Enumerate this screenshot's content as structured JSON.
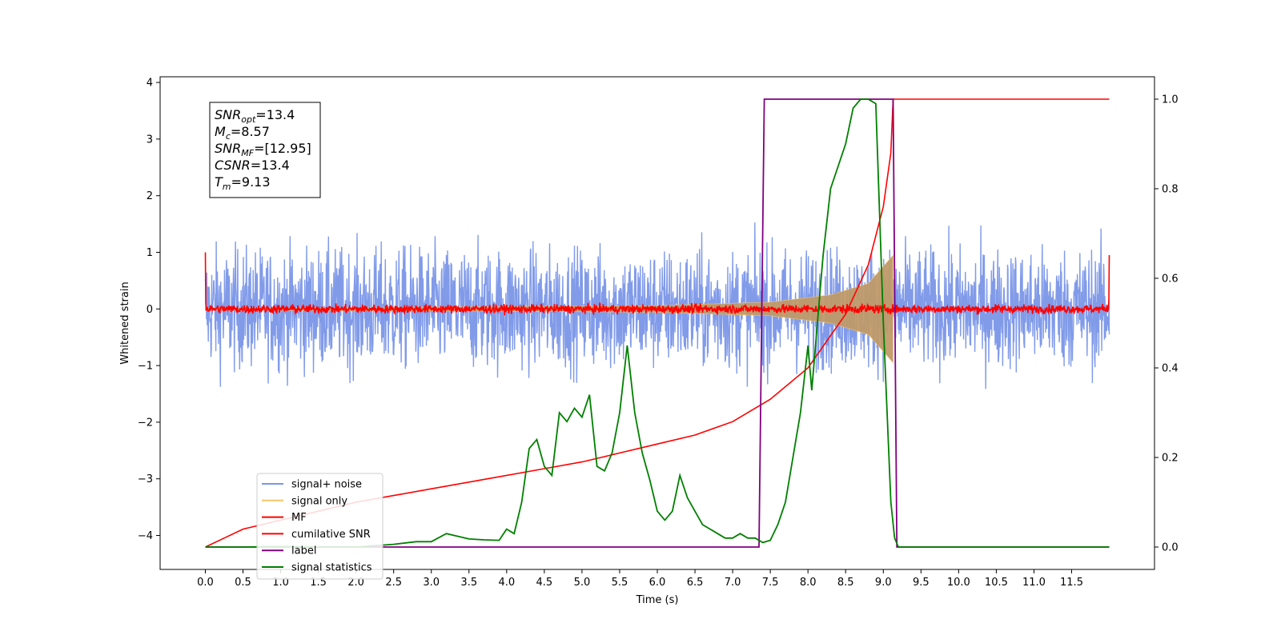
{
  "chart_data": {
    "type": "line",
    "xlabel": "Time (s)",
    "ylabel": "Whitened strain",
    "xlim": [
      -0.6,
      12.6
    ],
    "ylim": [
      -4.6,
      4.1
    ],
    "ylim_right": [
      -0.05,
      1.05
    ],
    "x_ticks": [
      "0.0",
      "0.5",
      "1.0",
      "1.5",
      "2.0",
      "2.5",
      "3.0",
      "3.5",
      "4.0",
      "4.5",
      "5.0",
      "5.5",
      "6.0",
      "6.5",
      "7.0",
      "7.5",
      "8.0",
      "8.5",
      "9.0",
      "9.5",
      "10.0",
      "10.5",
      "11.0",
      "11.5"
    ],
    "y_ticks_left": [
      "4",
      "3",
      "2",
      "1",
      "0",
      "−1",
      "−2",
      "−3",
      "−4"
    ],
    "y_ticks_right": [
      "1.0",
      "0.8",
      "0.6",
      "0.4",
      "0.2",
      "0.0"
    ],
    "grid": false,
    "legend_position": "lower-left",
    "info_box": [
      {
        "base": "SNR",
        "sub": "opt",
        "value": "=13.4"
      },
      {
        "base": "M",
        "sub": "c",
        "value": "=8.57"
      },
      {
        "base": "SNR",
        "sub": "MF",
        "value": "=[12.95]"
      },
      {
        "base": "CSNR",
        "sub": "",
        "value": "=13.4"
      },
      {
        "base": "T",
        "sub": "m",
        "value": "=9.13"
      }
    ],
    "series": [
      {
        "name": "signal+ noise",
        "color": "#7a96e8",
        "axis": "left",
        "noise_amplitude": 2.1,
        "range": [
          0,
          12
        ]
      },
      {
        "name": "signal only",
        "color": "#f5c66b",
        "axis": "left",
        "envelope": [
          [
            0,
            0.02
          ],
          [
            4,
            0.04
          ],
          [
            6,
            0.06
          ],
          [
            7.5,
            0.12
          ],
          [
            8.3,
            0.25
          ],
          [
            8.8,
            0.45
          ],
          [
            9.13,
            0.95
          ]
        ]
      },
      {
        "name": "MF",
        "color": "#ff0000",
        "axis": "left",
        "noise_amplitude": 0.12,
        "edge_peaks": [
          1.0,
          0.95
        ],
        "range": [
          0,
          12
        ]
      },
      {
        "name": "cumilative SNR",
        "color": "#ff0000",
        "axis": "right",
        "x": [
          0,
          0.25,
          0.5,
          1,
          1.5,
          2,
          2.5,
          3,
          3.5,
          4,
          4.5,
          5,
          5.5,
          6,
          6.5,
          7,
          7.5,
          8,
          8.5,
          8.8,
          9.0,
          9.1,
          9.13,
          9.2,
          12.0
        ],
        "y": [
          0,
          0.02,
          0.04,
          0.06,
          0.08,
          0.1,
          0.115,
          0.13,
          0.145,
          0.16,
          0.175,
          0.19,
          0.21,
          0.23,
          0.25,
          0.28,
          0.33,
          0.4,
          0.52,
          0.63,
          0.76,
          0.88,
          1.0,
          1.0,
          1.0
        ]
      },
      {
        "name": "label",
        "color": "#800080",
        "axis": "right",
        "x": [
          0,
          7.35,
          7.42,
          9.13,
          9.18,
          12.0
        ],
        "y": [
          0,
          0,
          1,
          1,
          0,
          0
        ]
      },
      {
        "name": "signal statistics",
        "color": "#008000",
        "axis": "right",
        "x": [
          0,
          0.5,
          1,
          1.5,
          2,
          2.5,
          2.8,
          3.0,
          3.2,
          3.5,
          3.7,
          3.9,
          4.0,
          4.1,
          4.2,
          4.3,
          4.4,
          4.5,
          4.6,
          4.7,
          4.8,
          4.9,
          5.0,
          5.1,
          5.2,
          5.3,
          5.4,
          5.5,
          5.6,
          5.7,
          5.8,
          5.9,
          6.0,
          6.1,
          6.2,
          6.3,
          6.4,
          6.5,
          6.6,
          6.7,
          6.8,
          6.9,
          7.0,
          7.1,
          7.2,
          7.3,
          7.4,
          7.5,
          7.6,
          7.7,
          7.8,
          7.9,
          8.0,
          8.05,
          8.1,
          8.2,
          8.3,
          8.4,
          8.5,
          8.6,
          8.7,
          8.8,
          8.9,
          9.0,
          9.1,
          9.15,
          9.2,
          12.0
        ],
        "y": [
          0,
          0,
          0.001,
          0,
          0,
          0.006,
          0.012,
          0.012,
          0.03,
          0.018,
          0.016,
          0.015,
          0.04,
          0.03,
          0.1,
          0.22,
          0.24,
          0.18,
          0.16,
          0.3,
          0.28,
          0.31,
          0.29,
          0.34,
          0.18,
          0.17,
          0.21,
          0.3,
          0.45,
          0.3,
          0.21,
          0.15,
          0.08,
          0.06,
          0.08,
          0.16,
          0.11,
          0.08,
          0.05,
          0.04,
          0.03,
          0.02,
          0.02,
          0.03,
          0.02,
          0.02,
          0.01,
          0.015,
          0.05,
          0.1,
          0.2,
          0.3,
          0.45,
          0.35,
          0.45,
          0.65,
          0.8,
          0.85,
          0.9,
          0.98,
          1.0,
          1.0,
          0.99,
          0.5,
          0.1,
          0.02,
          0,
          0
        ]
      }
    ]
  }
}
